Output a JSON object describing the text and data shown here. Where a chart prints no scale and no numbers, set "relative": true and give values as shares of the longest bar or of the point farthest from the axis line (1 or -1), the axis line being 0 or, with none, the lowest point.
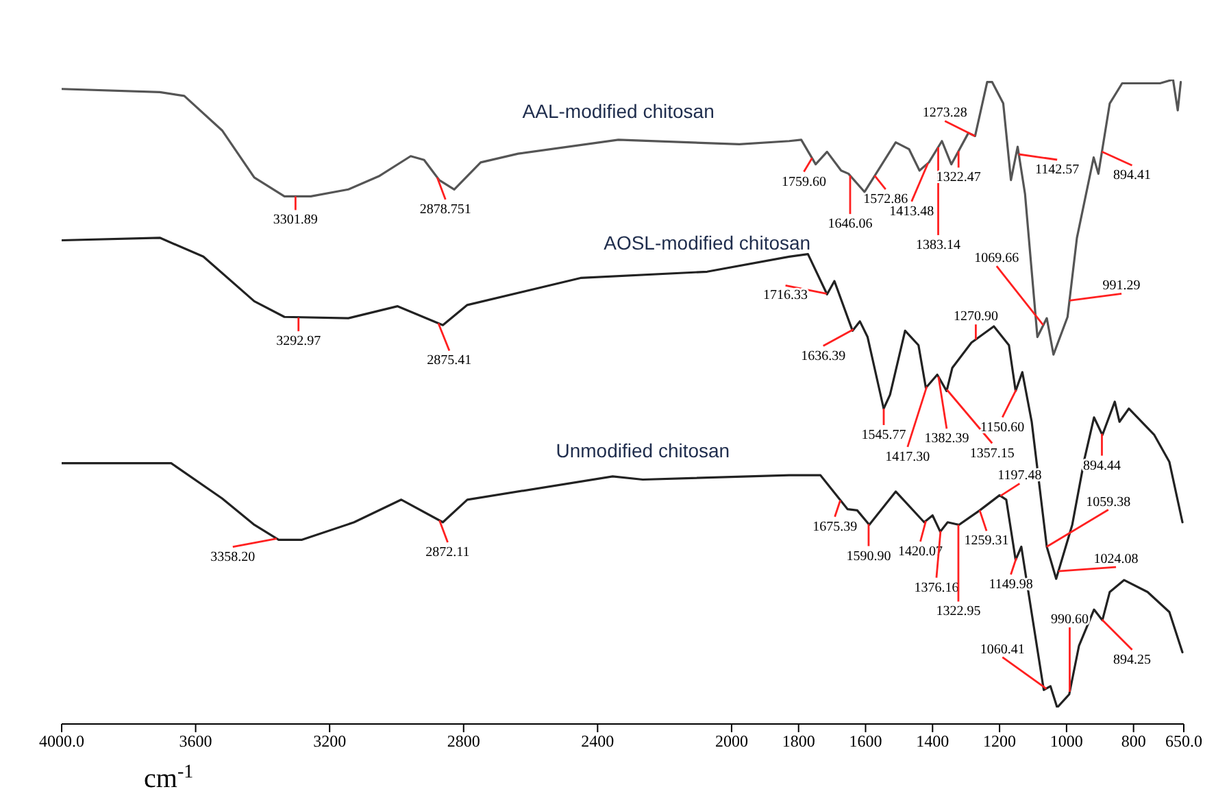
{
  "chart_data": {
    "type": "line",
    "relative": true,
    "xlabel": "cm$^{-1}$",
    "xlim": [
      4000,
      650
    ],
    "xticks": [
      {
        "value": 4000,
        "label": "4000.0"
      },
      3600,
      3200,
      2800,
      2400,
      2000,
      1800,
      1600,
      1400,
      1200,
      1000,
      800,
      {
        "value": 650,
        "label": "650.0"
      }
    ],
    "grid": false,
    "legend": false,
    "marker": "none",
    "series": [
      {
        "name": "AAL-modified chitosan",
        "color": "#555555",
        "x": [
          4000,
          3707,
          3634,
          3521,
          3425,
          3335,
          3256,
          3144,
          3053,
          2958,
          2918,
          2873,
          2828,
          2749,
          2637,
          2338,
          1977,
          1828,
          1792,
          1749,
          1715,
          1673,
          1651,
          1603,
          1510,
          1470,
          1439,
          1411,
          1372,
          1344,
          1293,
          1273,
          1237,
          1222,
          1189,
          1166,
          1146,
          1124,
          1087,
          1059,
          1039,
          997,
          969,
          919,
          905,
          871,
          834,
          721,
          682,
          668,
          659
        ],
        "values": [
          0.985,
          0.98,
          0.974,
          0.919,
          0.844,
          0.814,
          0.814,
          0.825,
          0.846,
          0.878,
          0.872,
          0.84,
          0.825,
          0.868,
          0.882,
          0.904,
          0.897,
          0.902,
          0.904,
          0.865,
          0.885,
          0.855,
          0.85,
          0.821,
          0.9,
          0.889,
          0.855,
          0.868,
          0.902,
          0.865,
          0.915,
          0.91,
          0.996,
          0.996,
          0.962,
          0.84,
          0.893,
          0.818,
          0.59,
          0.62,
          0.562,
          0.622,
          0.748,
          0.876,
          0.85,
          0.962,
          0.994,
          0.994,
          1.0,
          0.951,
          0.996
        ]
      },
      {
        "name": "AOSL-modified chitosan",
        "color": "#222222",
        "x": [
          4000,
          3707,
          3577,
          3425,
          3335,
          3144,
          2997,
          2862,
          2789,
          2451,
          2073,
          1828,
          1772,
          1715,
          1693,
          1639,
          1617,
          1594,
          1546,
          1527,
          1482,
          1442,
          1420,
          1386,
          1358,
          1341,
          1284,
          1217,
          1172,
          1152,
          1132,
          1104,
          1059,
          1031,
          983,
          946,
          918,
          893,
          856,
          842,
          814,
          738,
          693,
          654
        ],
        "values": [
          0.744,
          0.748,
          0.718,
          0.647,
          0.622,
          0.62,
          0.639,
          0.609,
          0.641,
          0.684,
          0.694,
          0.718,
          0.722,
          0.658,
          0.679,
          0.6,
          0.615,
          0.59,
          0.476,
          0.498,
          0.6,
          0.577,
          0.509,
          0.53,
          0.504,
          0.541,
          0.581,
          0.607,
          0.577,
          0.504,
          0.534,
          0.455,
          0.256,
          0.205,
          0.291,
          0.397,
          0.462,
          0.434,
          0.487,
          0.455,
          0.476,
          0.434,
          0.391,
          0.295
        ]
      },
      {
        "name": "Unmodified chitosan",
        "color": "#222222",
        "x": [
          4000,
          3673,
          3521,
          3425,
          3352,
          3284,
          3127,
          2986,
          2862,
          2789,
          2355,
          2265,
          1828,
          1735,
          1654,
          1625,
          1589,
          1510,
          1425,
          1400,
          1377,
          1355,
          1321,
          1259,
          1200,
          1180,
          1152,
          1135,
          1104,
          1068,
          1048,
          1028,
          992,
          963,
          918,
          893,
          871,
          828,
          758,
          693,
          654
        ],
        "values": [
          0.389,
          0.389,
          0.333,
          0.291,
          0.267,
          0.267,
          0.295,
          0.331,
          0.295,
          0.331,
          0.368,
          0.363,
          0.37,
          0.37,
          0.316,
          0.314,
          0.291,
          0.344,
          0.295,
          0.306,
          0.28,
          0.295,
          0.291,
          0.314,
          0.338,
          0.331,
          0.235,
          0.256,
          0.15,
          0.028,
          0.034,
          0,
          0.021,
          0.098,
          0.156,
          0.139,
          0.184,
          0.203,
          0.184,
          0.152,
          0.088
        ]
      }
    ],
    "annotations": [
      {
        "text": "3301.89",
        "x": 3301.89,
        "y": 0.814
      },
      {
        "text": "2878.751",
        "x": 2878.751,
        "y": 0.844
      },
      {
        "text": "1759.60",
        "x": 1759.6,
        "y": 0.875
      },
      {
        "text": "1646.06",
        "x": 1646.06,
        "y": 0.847
      },
      {
        "text": "1572.86",
        "x": 1572.86,
        "y": 0.847
      },
      {
        "text": "1413.48",
        "x": 1413.48,
        "y": 0.867
      },
      {
        "text": "1383.14",
        "x": 1383.14,
        "y": 0.892
      },
      {
        "text": "1322.47",
        "x": 1322.47,
        "y": 0.886
      },
      {
        "text": "1273.28",
        "x": 1273.28,
        "y": 0.91
      },
      {
        "text": "1142.57",
        "x": 1142.57,
        "y": 0.881
      },
      {
        "text": "1069.66",
        "x": 1069.66,
        "y": 0.609
      },
      {
        "text": "991.29",
        "x": 991.29,
        "y": 0.648
      },
      {
        "text": "894.41",
        "x": 894.41,
        "y": 0.885
      },
      {
        "text": "3292.97",
        "x": 3292.97,
        "y": 0.621
      },
      {
        "text": "2875.41",
        "x": 2875.41,
        "y": 0.612
      },
      {
        "text": "1716.33",
        "x": 1716.33,
        "y": 0.659
      },
      {
        "text": "1636.39",
        "x": 1636.39,
        "y": 0.602
      },
      {
        "text": "1545.77",
        "x": 1545.77,
        "y": 0.476
      },
      {
        "text": "1417.30",
        "x": 1417.3,
        "y": 0.511
      },
      {
        "text": "1382.39",
        "x": 1382.39,
        "y": 0.527
      },
      {
        "text": "1357.15",
        "x": 1357.15,
        "y": 0.506
      },
      {
        "text": "1270.90",
        "x": 1270.9,
        "y": 0.586
      },
      {
        "text": "1150.60",
        "x": 1150.6,
        "y": 0.506
      },
      {
        "text": "1059.38",
        "x": 1059.38,
        "y": 0.256
      },
      {
        "text": "1024.08",
        "x": 1024.08,
        "y": 0.217
      },
      {
        "text": "894.44",
        "x": 894.44,
        "y": 0.436
      },
      {
        "text": "3358.20",
        "x": 3358.2,
        "y": 0.269
      },
      {
        "text": "2872.11",
        "x": 2872.11,
        "y": 0.298
      },
      {
        "text": "1675.39",
        "x": 1675.39,
        "y": 0.33
      },
      {
        "text": "1590.90",
        "x": 1590.9,
        "y": 0.292
      },
      {
        "text": "1420.07",
        "x": 1420.07,
        "y": 0.297
      },
      {
        "text": "1376.16",
        "x": 1376.16,
        "y": 0.281
      },
      {
        "text": "1322.95",
        "x": 1322.95,
        "y": 0.291
      },
      {
        "text": "1259.31",
        "x": 1259.31,
        "y": 0.314
      },
      {
        "text": "1197.48",
        "x": 1197.48,
        "y": 0.337
      },
      {
        "text": "1149.98",
        "x": 1149.98,
        "y": 0.238
      },
      {
        "text": "1060.41",
        "x": 1060.41,
        "y": 0.03
      },
      {
        "text": "990.60",
        "x": 990.6,
        "y": 0.025
      },
      {
        "text": "894.25",
        "x": 894.25,
        "y": 0.14
      }
    ]
  }
}
